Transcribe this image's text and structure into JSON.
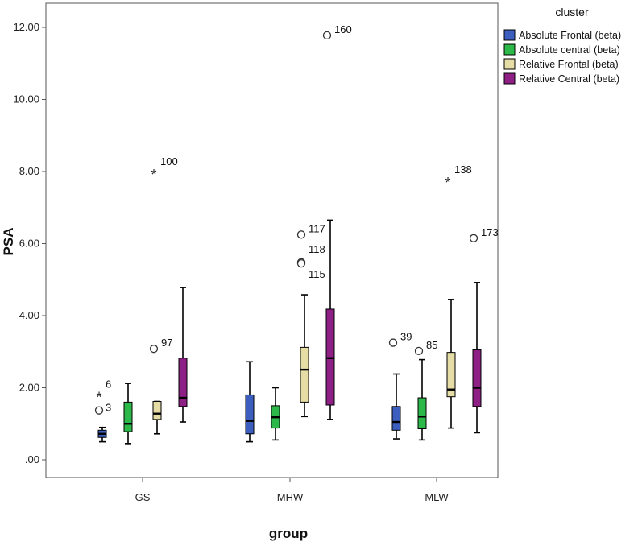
{
  "chart_data": {
    "type": "boxplot",
    "xlabel": "group",
    "ylabel": "PSA",
    "ylim": [
      0,
      12.5
    ],
    "y_ticks": [
      ".00",
      "2.00",
      "4.00",
      "6.00",
      "8.00",
      "10.00",
      "12.00"
    ],
    "y_tick_values": [
      0,
      2,
      4,
      6,
      8,
      10,
      12
    ],
    "categories": [
      "GS",
      "MHW",
      "MLW"
    ],
    "legend": {
      "title": "cluster",
      "position": "top-right"
    },
    "series": [
      {
        "name": "Absolute Frontal (beta)",
        "color": "#3c5fbf",
        "boxes": [
          {
            "min": 0.5,
            "q1": 0.62,
            "median": 0.72,
            "q3": 0.82,
            "max": 0.9
          },
          {
            "min": 0.5,
            "q1": 0.72,
            "median": 1.08,
            "q3": 1.8,
            "max": 2.72
          },
          {
            "min": 0.58,
            "q1": 0.82,
            "median": 1.05,
            "q3": 1.48,
            "max": 2.38
          }
        ]
      },
      {
        "name": "Absolute central (beta)",
        "color": "#2db84a",
        "boxes": [
          {
            "min": 0.45,
            "q1": 0.78,
            "median": 1.0,
            "q3": 1.6,
            "max": 2.12
          },
          {
            "min": 0.55,
            "q1": 0.88,
            "median": 1.18,
            "q3": 1.5,
            "max": 2.0
          },
          {
            "min": 0.55,
            "q1": 0.86,
            "median": 1.2,
            "q3": 1.72,
            "max": 2.78
          }
        ]
      },
      {
        "name": "Relative Frontal (beta)",
        "color": "#e6dca6",
        "boxes": [
          {
            "min": 0.72,
            "q1": 1.12,
            "median": 1.28,
            "q3": 1.62,
            "max": 1.62
          },
          {
            "min": 1.2,
            "q1": 1.6,
            "median": 2.5,
            "q3": 3.12,
            "max": 4.58
          },
          {
            "min": 0.88,
            "q1": 1.75,
            "median": 1.95,
            "q3": 2.98,
            "max": 4.45
          }
        ]
      },
      {
        "name": "Relative Central (beta)",
        "color": "#8e1f85",
        "boxes": [
          {
            "min": 1.05,
            "q1": 1.48,
            "median": 1.72,
            "q3": 2.82,
            "max": 4.78
          },
          {
            "min": 1.12,
            "q1": 1.52,
            "median": 2.82,
            "q3": 4.18,
            "max": 6.65
          },
          {
            "min": 0.75,
            "q1": 1.48,
            "median": 2.0,
            "q3": 3.05,
            "max": 4.92
          }
        ]
      }
    ],
    "outliers": [
      {
        "category": "GS",
        "series": "Absolute Frontal (beta)",
        "value": 1.37,
        "shape": "circle",
        "label": ""
      },
      {
        "category": "GS",
        "series": "Absolute Frontal (beta)",
        "value": 1.8,
        "shape": "star",
        "label": "6"
      },
      {
        "category": "GS",
        "series": "Absolute Frontal (beta)",
        "value": 1.8,
        "shape": "none",
        "label": "3"
      },
      {
        "category": "GS",
        "series": "Relative Frontal (beta)",
        "value": 3.08,
        "shape": "circle",
        "label": "97"
      },
      {
        "category": "GS",
        "series": "Relative Frontal (beta)",
        "value": 7.98,
        "shape": "star",
        "label": "100"
      },
      {
        "category": "MHW",
        "series": "Relative Frontal (beta)",
        "value": 6.25,
        "shape": "circle",
        "label": "117"
      },
      {
        "category": "MHW",
        "series": "Relative Frontal (beta)",
        "value": 5.48,
        "shape": "circle",
        "label": "118"
      },
      {
        "category": "MHW",
        "series": "Relative Frontal (beta)",
        "value": 5.45,
        "shape": "circle",
        "label": "115"
      },
      {
        "category": "MHW",
        "series": "Relative Central (beta)",
        "value": 11.78,
        "shape": "circle",
        "label": "160"
      },
      {
        "category": "MLW",
        "series": "Absolute Frontal (beta)",
        "value": 3.25,
        "shape": "circle",
        "label": "39"
      },
      {
        "category": "MLW",
        "series": "Absolute central (beta)",
        "value": 3.02,
        "shape": "circle",
        "label": "85"
      },
      {
        "category": "MLW",
        "series": "Relative Frontal (beta)",
        "value": 7.75,
        "shape": "star",
        "label": "138"
      },
      {
        "category": "MLW",
        "series": "Relative Central (beta)",
        "value": 6.15,
        "shape": "circle",
        "label": "173"
      }
    ]
  }
}
